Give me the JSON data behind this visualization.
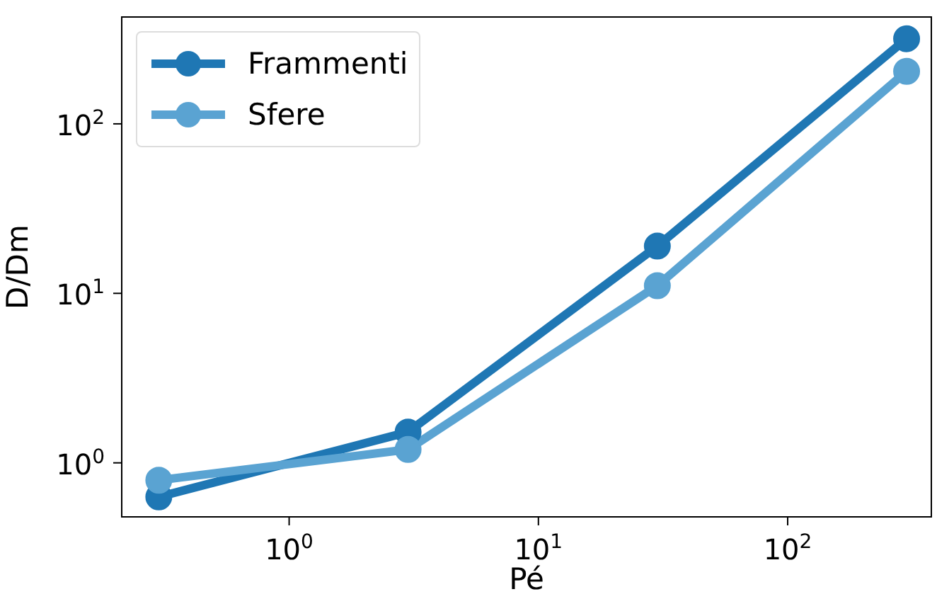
{
  "chart_data": {
    "type": "line",
    "xlabel": "Pé",
    "ylabel": "D/Dm",
    "log": "xy",
    "marker": "circle",
    "legend": "top left",
    "grid": false,
    "x": [
      0.3,
      3,
      30,
      300
    ],
    "xlim": [
      0.213,
      377
    ],
    "ylim": [
      0.48,
      427
    ],
    "xticks": [
      {
        "value": 1,
        "label": "10$^{0}$"
      },
      {
        "value": 10,
        "label": "10$^{1}$"
      },
      {
        "value": 100,
        "label": "10$^{2}$"
      }
    ],
    "yticks": [
      {
        "value": 1,
        "label": "10$^{0}$"
      },
      {
        "value": 10,
        "label": "10$^{1}$"
      },
      {
        "value": 100,
        "label": "10$^{2}$"
      }
    ],
    "series": [
      {
        "name": "Frammenti",
        "color": "#1f77b4",
        "values": [
          0.63,
          1.52,
          19,
          318
        ]
      },
      {
        "name": "Sfere",
        "color": "#5aa3d2",
        "values": [
          0.79,
          1.2,
          11.1,
          204
        ]
      }
    ]
  }
}
